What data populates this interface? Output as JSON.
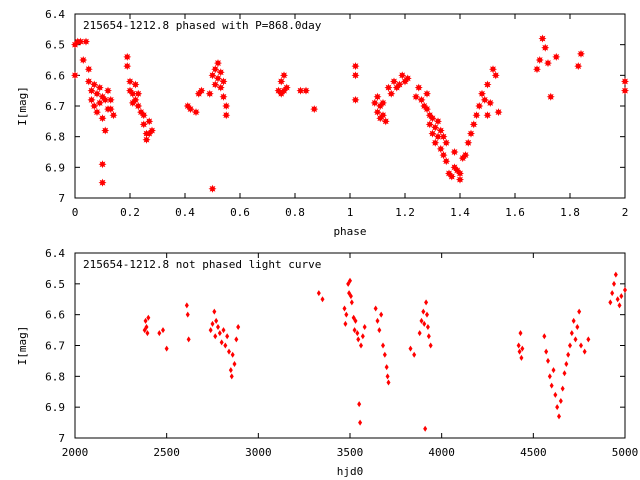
{
  "chart_data": [
    {
      "type": "scatter",
      "title": "215654-1212.8 phased with P=868.0day",
      "xlabel": "phase",
      "ylabel": "I[mag]",
      "xlim": [
        0,
        2
      ],
      "ylim": [
        6.4,
        7.0
      ],
      "y_inverted": true,
      "x_ticks": [
        "0",
        "0.2",
        "0.4",
        "0.6",
        "0.8",
        "1",
        "1.2",
        "1.4",
        "1.6",
        "1.8",
        "2"
      ],
      "y_ticks": [
        "6.4",
        "6.5",
        "6.6",
        "6.7",
        "6.8",
        "6.9",
        "7"
      ],
      "marker": "star",
      "color": "#ff0000",
      "grid": false,
      "points": [
        [
          0.0,
          6.5
        ],
        [
          0.0,
          6.6
        ],
        [
          0.01,
          6.49
        ],
        [
          0.02,
          6.49
        ],
        [
          0.03,
          6.55
        ],
        [
          0.04,
          6.49
        ],
        [
          0.05,
          6.58
        ],
        [
          0.05,
          6.62
        ],
        [
          0.06,
          6.65
        ],
        [
          0.06,
          6.68
        ],
        [
          0.07,
          6.63
        ],
        [
          0.07,
          6.7
        ],
        [
          0.08,
          6.66
        ],
        [
          0.08,
          6.72
        ],
        [
          0.09,
          6.64
        ],
        [
          0.09,
          6.69
        ],
        [
          0.1,
          6.67
        ],
        [
          0.1,
          6.74
        ],
        [
          0.1,
          6.89
        ],
        [
          0.1,
          6.95
        ],
        [
          0.11,
          6.68
        ],
        [
          0.11,
          6.78
        ],
        [
          0.12,
          6.65
        ],
        [
          0.12,
          6.71
        ],
        [
          0.13,
          6.68
        ],
        [
          0.13,
          6.71
        ],
        [
          0.14,
          6.73
        ],
        [
          0.19,
          6.54
        ],
        [
          0.19,
          6.57
        ],
        [
          0.2,
          6.62
        ],
        [
          0.2,
          6.65
        ],
        [
          0.21,
          6.66
        ],
        [
          0.21,
          6.69
        ],
        [
          0.22,
          6.63
        ],
        [
          0.22,
          6.68
        ],
        [
          0.23,
          6.66
        ],
        [
          0.23,
          6.7
        ],
        [
          0.24,
          6.72
        ],
        [
          0.25,
          6.73
        ],
        [
          0.25,
          6.76
        ],
        [
          0.26,
          6.79
        ],
        [
          0.26,
          6.81
        ],
        [
          0.27,
          6.75
        ],
        [
          0.27,
          6.79
        ],
        [
          0.28,
          6.78
        ],
        [
          0.41,
          6.7
        ],
        [
          0.42,
          6.71
        ],
        [
          0.44,
          6.72
        ],
        [
          0.45,
          6.66
        ],
        [
          0.46,
          6.65
        ],
        [
          0.49,
          6.66
        ],
        [
          0.5,
          6.6
        ],
        [
          0.5,
          6.97
        ],
        [
          0.51,
          6.58
        ],
        [
          0.51,
          6.63
        ],
        [
          0.52,
          6.56
        ],
        [
          0.52,
          6.61
        ],
        [
          0.53,
          6.59
        ],
        [
          0.53,
          6.64
        ],
        [
          0.54,
          6.62
        ],
        [
          0.54,
          6.67
        ],
        [
          0.55,
          6.7
        ],
        [
          0.55,
          6.73
        ],
        [
          0.74,
          6.65
        ],
        [
          0.75,
          6.62
        ],
        [
          0.75,
          6.66
        ],
        [
          0.76,
          6.6
        ],
        [
          0.76,
          6.65
        ],
        [
          0.77,
          6.64
        ],
        [
          0.82,
          6.65
        ],
        [
          0.84,
          6.65
        ],
        [
          0.87,
          6.71
        ],
        [
          1.02,
          6.57
        ],
        [
          1.02,
          6.6
        ],
        [
          1.02,
          6.68
        ],
        [
          1.09,
          6.69
        ],
        [
          1.1,
          6.72
        ],
        [
          1.1,
          6.67
        ],
        [
          1.11,
          6.7
        ],
        [
          1.11,
          6.74
        ],
        [
          1.12,
          6.69
        ],
        [
          1.12,
          6.73
        ],
        [
          1.13,
          6.75
        ],
        [
          1.14,
          6.64
        ],
        [
          1.15,
          6.66
        ],
        [
          1.16,
          6.62
        ],
        [
          1.17,
          6.64
        ],
        [
          1.18,
          6.63
        ],
        [
          1.19,
          6.6
        ],
        [
          1.2,
          6.62
        ],
        [
          1.21,
          6.61
        ],
        [
          1.24,
          6.67
        ],
        [
          1.25,
          6.64
        ],
        [
          1.26,
          6.68
        ],
        [
          1.27,
          6.7
        ],
        [
          1.28,
          6.71
        ],
        [
          1.28,
          6.66
        ],
        [
          1.29,
          6.73
        ],
        [
          1.29,
          6.76
        ],
        [
          1.3,
          6.74
        ],
        [
          1.3,
          6.79
        ],
        [
          1.31,
          6.77
        ],
        [
          1.31,
          6.82
        ],
        [
          1.32,
          6.75
        ],
        [
          1.32,
          6.8
        ],
        [
          1.33,
          6.78
        ],
        [
          1.33,
          6.84
        ],
        [
          1.34,
          6.8
        ],
        [
          1.34,
          6.86
        ],
        [
          1.35,
          6.82
        ],
        [
          1.35,
          6.88
        ],
        [
          1.36,
          6.92
        ],
        [
          1.37,
          6.93
        ],
        [
          1.38,
          6.85
        ],
        [
          1.38,
          6.9
        ],
        [
          1.39,
          6.91
        ],
        [
          1.4,
          6.92
        ],
        [
          1.4,
          6.94
        ],
        [
          1.41,
          6.87
        ],
        [
          1.42,
          6.86
        ],
        [
          1.43,
          6.82
        ],
        [
          1.44,
          6.79
        ],
        [
          1.45,
          6.76
        ],
        [
          1.46,
          6.73
        ],
        [
          1.47,
          6.7
        ],
        [
          1.48,
          6.66
        ],
        [
          1.49,
          6.68
        ],
        [
          1.5,
          6.63
        ],
        [
          1.5,
          6.73
        ],
        [
          1.51,
          6.69
        ],
        [
          1.52,
          6.58
        ],
        [
          1.53,
          6.6
        ],
        [
          1.54,
          6.72
        ],
        [
          1.68,
          6.58
        ],
        [
          1.69,
          6.55
        ],
        [
          1.7,
          6.48
        ],
        [
          1.71,
          6.51
        ],
        [
          1.72,
          6.56
        ],
        [
          1.73,
          6.67
        ],
        [
          1.75,
          6.54
        ],
        [
          1.83,
          6.57
        ],
        [
          1.84,
          6.53
        ],
        [
          2.0,
          6.62
        ],
        [
          2.0,
          6.65
        ]
      ]
    },
    {
      "type": "scatter",
      "title": "215654-1212.8 not phased light curve",
      "xlabel": "hjd0",
      "ylabel": "I[mag]",
      "xlim": [
        2000,
        5000
      ],
      "ylim": [
        6.4,
        7.0
      ],
      "y_inverted": true,
      "x_ticks": [
        "2000",
        "2500",
        "3000",
        "3500",
        "4000",
        "4500",
        "5000"
      ],
      "y_ticks": [
        "6.4",
        "6.5",
        "6.6",
        "6.7",
        "6.8",
        "6.9",
        "7"
      ],
      "marker": "diamond",
      "color": "#ff0000",
      "grid": false,
      "points": [
        [
          2380,
          6.65
        ],
        [
          2385,
          6.62
        ],
        [
          2390,
          6.64
        ],
        [
          2395,
          6.66
        ],
        [
          2400,
          6.61
        ],
        [
          2460,
          6.66
        ],
        [
          2480,
          6.65
        ],
        [
          2500,
          6.71
        ],
        [
          2610,
          6.57
        ],
        [
          2615,
          6.6
        ],
        [
          2620,
          6.68
        ],
        [
          2740,
          6.65
        ],
        [
          2750,
          6.63
        ],
        [
          2760,
          6.59
        ],
        [
          2765,
          6.67
        ],
        [
          2770,
          6.62
        ],
        [
          2780,
          6.64
        ],
        [
          2790,
          6.66
        ],
        [
          2800,
          6.69
        ],
        [
          2810,
          6.65
        ],
        [
          2820,
          6.7
        ],
        [
          2830,
          6.67
        ],
        [
          2840,
          6.72
        ],
        [
          2850,
          6.78
        ],
        [
          2855,
          6.8
        ],
        [
          2860,
          6.73
        ],
        [
          2870,
          6.76
        ],
        [
          2880,
          6.68
        ],
        [
          2890,
          6.64
        ],
        [
          3330,
          6.53
        ],
        [
          3350,
          6.55
        ],
        [
          3470,
          6.58
        ],
        [
          3475,
          6.63
        ],
        [
          3480,
          6.6
        ],
        [
          3490,
          6.5
        ],
        [
          3495,
          6.53
        ],
        [
          3500,
          6.49
        ],
        [
          3505,
          6.54
        ],
        [
          3510,
          6.56
        ],
        [
          3520,
          6.61
        ],
        [
          3525,
          6.65
        ],
        [
          3530,
          6.62
        ],
        [
          3540,
          6.66
        ],
        [
          3545,
          6.68
        ],
        [
          3550,
          6.89
        ],
        [
          3555,
          6.95
        ],
        [
          3560,
          6.7
        ],
        [
          3570,
          6.67
        ],
        [
          3580,
          6.64
        ],
        [
          3640,
          6.58
        ],
        [
          3650,
          6.62
        ],
        [
          3660,
          6.65
        ],
        [
          3670,
          6.6
        ],
        [
          3680,
          6.7
        ],
        [
          3690,
          6.73
        ],
        [
          3700,
          6.77
        ],
        [
          3705,
          6.8
        ],
        [
          3710,
          6.82
        ],
        [
          3830,
          6.71
        ],
        [
          3850,
          6.73
        ],
        [
          3880,
          6.66
        ],
        [
          3890,
          6.62
        ],
        [
          3900,
          6.59
        ],
        [
          3905,
          6.63
        ],
        [
          3910,
          6.97
        ],
        [
          3915,
          6.56
        ],
        [
          3920,
          6.6
        ],
        [
          3925,
          6.64
        ],
        [
          3930,
          6.67
        ],
        [
          3940,
          6.7
        ],
        [
          4420,
          6.7
        ],
        [
          4425,
          6.72
        ],
        [
          4430,
          6.66
        ],
        [
          4435,
          6.74
        ],
        [
          4440,
          6.71
        ],
        [
          4560,
          6.67
        ],
        [
          4570,
          6.72
        ],
        [
          4580,
          6.75
        ],
        [
          4590,
          6.8
        ],
        [
          4600,
          6.83
        ],
        [
          4610,
          6.78
        ],
        [
          4620,
          6.86
        ],
        [
          4630,
          6.9
        ],
        [
          4640,
          6.93
        ],
        [
          4650,
          6.88
        ],
        [
          4660,
          6.84
        ],
        [
          4670,
          6.79
        ],
        [
          4680,
          6.76
        ],
        [
          4690,
          6.73
        ],
        [
          4700,
          6.7
        ],
        [
          4710,
          6.66
        ],
        [
          4720,
          6.62
        ],
        [
          4730,
          6.68
        ],
        [
          4740,
          6.64
        ],
        [
          4750,
          6.59
        ],
        [
          4760,
          6.7
        ],
        [
          4780,
          6.72
        ],
        [
          4800,
          6.68
        ],
        [
          4920,
          6.56
        ],
        [
          4930,
          6.53
        ],
        [
          4940,
          6.5
        ],
        [
          4950,
          6.47
        ],
        [
          4960,
          6.55
        ],
        [
          4970,
          6.57
        ],
        [
          4980,
          6.54
        ],
        [
          5000,
          6.52
        ]
      ]
    }
  ]
}
